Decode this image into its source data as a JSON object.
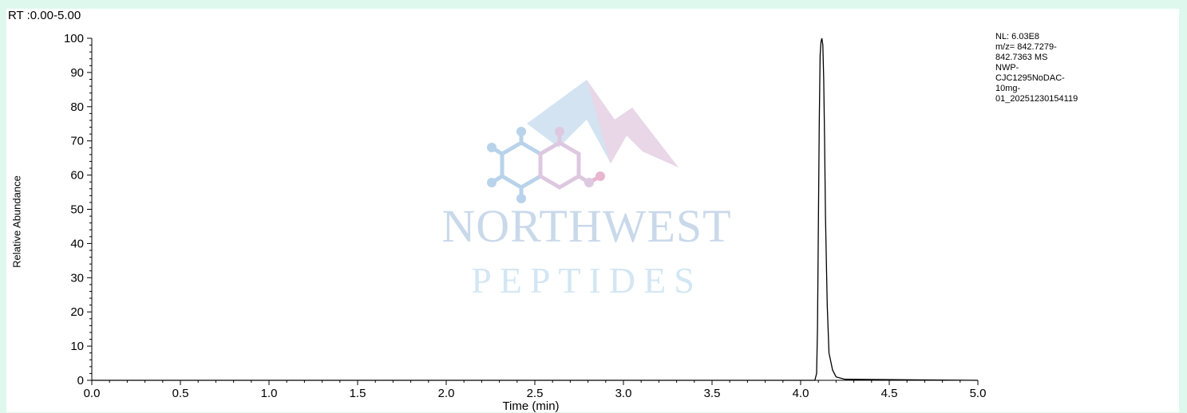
{
  "header": {
    "rt_range": "RT :0.00-5.00"
  },
  "info": {
    "lines": [
      "NL: 6.03E8",
      "m/z= 842.7279-",
      "842.7363 MS",
      "NWP-",
      "CJC1295NoDAC-",
      "10mg-",
      "01_20251230154119"
    ]
  },
  "watermark": {
    "brand": "NORTHWEST",
    "sub": "PEPTIDES",
    "colors": [
      "#a9cbe8",
      "#e2c6dc"
    ]
  },
  "chart_data": {
    "type": "line",
    "xlabel": "Time (min)",
    "ylabel": "Relative Abundance",
    "xlim": [
      0,
      5
    ],
    "ylim": [
      0,
      100
    ],
    "x_ticks": [
      "0.0",
      "0.5",
      "1.0",
      "1.5",
      "2.0",
      "2.5",
      "3.0",
      "3.5",
      "4.0",
      "4.5",
      "5.0"
    ],
    "y_ticks": [
      "0",
      "10",
      "20",
      "30",
      "40",
      "50",
      "60",
      "70",
      "80",
      "90",
      "100"
    ],
    "grid": false,
    "series": [
      {
        "color": "#000000",
        "x": [
          0,
          4.0,
          4.08,
          4.09,
          4.095,
          4.1,
          4.105,
          4.11,
          4.115,
          4.12,
          4.125,
          4.13,
          4.135,
          4.14,
          4.15,
          4.16,
          4.18,
          4.2,
          4.25,
          5.0
        ],
        "y": [
          0,
          0,
          0,
          2,
          15,
          45,
          75,
          95,
          99,
          100,
          98,
          88,
          70,
          48,
          22,
          8,
          3,
          1,
          0.3,
          0
        ]
      }
    ]
  }
}
